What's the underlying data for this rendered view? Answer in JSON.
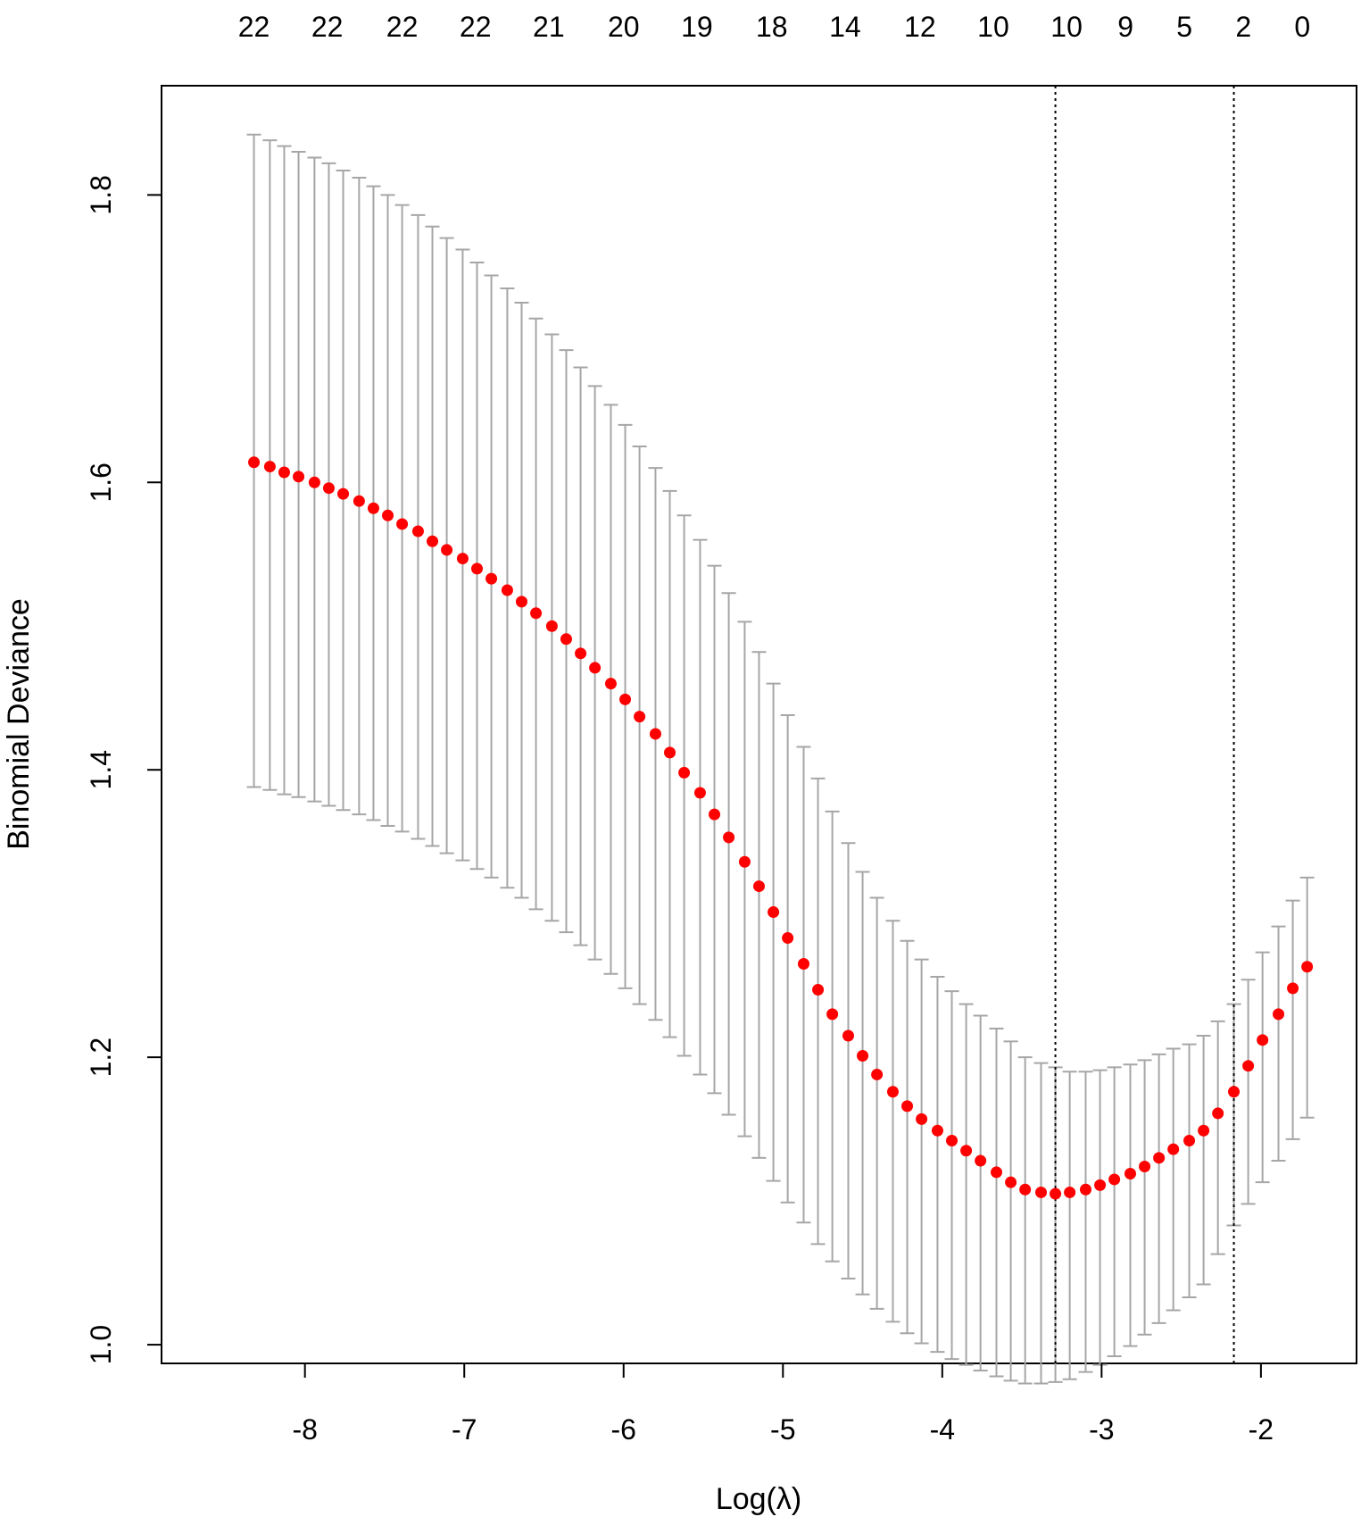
{
  "chart_data": {
    "type": "scatter",
    "xlabel": "Log(λ)",
    "ylabel": "Binomial Deviance",
    "xlim": [
      -8.9,
      -1.4
    ],
    "ylim": [
      0.987,
      1.876
    ],
    "x_ticks": [
      -8,
      -7,
      -6,
      -5,
      -4,
      -3,
      -2
    ],
    "y_ticks": [
      1.0,
      1.2,
      1.4,
      1.6,
      1.8
    ],
    "x_tick_labels": [
      "-8",
      "-7",
      "-6",
      "-5",
      "-4",
      "-3",
      "-2"
    ],
    "y_tick_labels": [
      "1.0",
      "1.2",
      "1.4",
      "1.6",
      "1.8"
    ],
    "top_axis": {
      "positions": [
        -8.32,
        -7.86,
        -7.39,
        -6.93,
        -6.47,
        -6.0,
        -5.54,
        -5.07,
        -4.61,
        -4.14,
        -3.68,
        -3.22,
        -2.85,
        -2.48,
        -2.11,
        -1.74
      ],
      "labels": [
        "22",
        "22",
        "22",
        "22",
        "21",
        "20",
        "19",
        "18",
        "14",
        "12",
        "10",
        "10",
        "9",
        "5",
        "2",
        "0"
      ]
    },
    "vlines": [
      -3.29,
      -2.17
    ],
    "grid": false,
    "point_color": "#ff0000",
    "errorbar_color": "#a6a6a6",
    "series": [
      {
        "x": [
          -8.32,
          -8.22,
          -8.13,
          -8.04,
          -7.94,
          -7.85,
          -7.76,
          -7.66,
          -7.57,
          -7.48,
          -7.39,
          -7.29,
          -7.2,
          -7.11,
          -7.01,
          -6.92,
          -6.83,
          -6.73,
          -6.64,
          -6.55,
          -6.45,
          -6.36,
          -6.27,
          -6.18,
          -6.08,
          -5.99,
          -5.9,
          -5.8,
          -5.71,
          -5.62,
          -5.52,
          -5.43,
          -5.34,
          -5.24,
          -5.15,
          -5.06,
          -4.97,
          -4.87,
          -4.78,
          -4.69,
          -4.59,
          -4.5,
          -4.41,
          -4.31,
          -4.22,
          -4.13,
          -4.03,
          -3.94,
          -3.85,
          -3.76,
          -3.66,
          -3.57,
          -3.48,
          -3.38,
          -3.29,
          -3.2,
          -3.1,
          -3.01,
          -2.92,
          -2.82,
          -2.73,
          -2.64,
          -2.55,
          -2.45,
          -2.36,
          -2.27,
          -2.17,
          -2.08,
          -1.99,
          -1.89,
          -1.8,
          -1.71
        ],
        "y": [
          1.614,
          1.611,
          1.607,
          1.604,
          1.6,
          1.596,
          1.592,
          1.587,
          1.582,
          1.577,
          1.571,
          1.566,
          1.559,
          1.553,
          1.547,
          1.54,
          1.533,
          1.525,
          1.517,
          1.509,
          1.5,
          1.491,
          1.481,
          1.471,
          1.46,
          1.449,
          1.437,
          1.425,
          1.412,
          1.398,
          1.384,
          1.369,
          1.353,
          1.336,
          1.319,
          1.301,
          1.283,
          1.265,
          1.247,
          1.23,
          1.215,
          1.201,
          1.188,
          1.176,
          1.166,
          1.157,
          1.149,
          1.142,
          1.135,
          1.128,
          1.12,
          1.113,
          1.108,
          1.106,
          1.105,
          1.106,
          1.108,
          1.111,
          1.115,
          1.119,
          1.124,
          1.13,
          1.136,
          1.142,
          1.149,
          1.161,
          1.176,
          1.194,
          1.212,
          1.23,
          1.248,
          1.263
        ],
        "upper": [
          1.842,
          1.838,
          1.834,
          1.83,
          1.826,
          1.822,
          1.817,
          1.812,
          1.806,
          1.8,
          1.793,
          1.786,
          1.778,
          1.77,
          1.762,
          1.753,
          1.744,
          1.735,
          1.725,
          1.714,
          1.703,
          1.692,
          1.68,
          1.667,
          1.654,
          1.64,
          1.625,
          1.61,
          1.594,
          1.577,
          1.56,
          1.542,
          1.523,
          1.503,
          1.482,
          1.46,
          1.438,
          1.416,
          1.394,
          1.371,
          1.349,
          1.329,
          1.311,
          1.295,
          1.281,
          1.268,
          1.256,
          1.246,
          1.237,
          1.229,
          1.22,
          1.211,
          1.2,
          1.196,
          1.193,
          1.19,
          1.19,
          1.191,
          1.193,
          1.195,
          1.198,
          1.202,
          1.206,
          1.209,
          1.215,
          1.225,
          1.237,
          1.254,
          1.273,
          1.291,
          1.309,
          1.325
        ],
        "lower": [
          1.388,
          1.386,
          1.383,
          1.381,
          1.378,
          1.375,
          1.372,
          1.369,
          1.365,
          1.361,
          1.357,
          1.352,
          1.347,
          1.342,
          1.337,
          1.331,
          1.325,
          1.318,
          1.311,
          1.303,
          1.295,
          1.287,
          1.278,
          1.268,
          1.258,
          1.248,
          1.237,
          1.226,
          1.214,
          1.201,
          1.188,
          1.175,
          1.16,
          1.145,
          1.13,
          1.114,
          1.099,
          1.085,
          1.07,
          1.058,
          1.046,
          1.035,
          1.025,
          1.016,
          1.008,
          1.001,
          0.995,
          0.99,
          0.986,
          0.982,
          0.978,
          0.975,
          0.973,
          0.973,
          0.974,
          0.976,
          0.981,
          0.986,
          0.992,
          0.999,
          1.007,
          1.015,
          1.024,
          1.033,
          1.042,
          1.063,
          1.083,
          1.098,
          1.113,
          1.128,
          1.143,
          1.158
        ]
      }
    ]
  }
}
